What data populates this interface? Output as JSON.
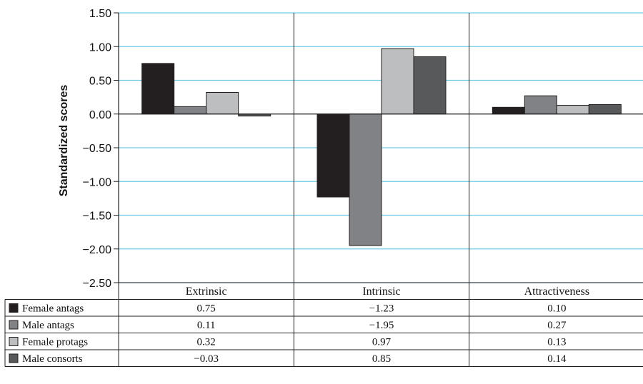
{
  "chart_data": {
    "type": "bar",
    "title": "",
    "ylabel": "Standardized scores",
    "xlabel": "",
    "ylim": [
      -2.5,
      1.5
    ],
    "yticks": [
      1.5,
      1.0,
      0.5,
      0.0,
      -0.5,
      -1.0,
      -1.5,
      -2.0,
      -2.5
    ],
    "ytick_labels": [
      "1.50",
      "1.00",
      "0.50",
      "0.00",
      "−0.50",
      "−1.00",
      "−1.50",
      "−2.00",
      "−2.50"
    ],
    "categories": [
      "Extrinsic",
      "Intrinsic",
      "Attractiveness"
    ],
    "grid": true,
    "legend": "data table below chart",
    "series": [
      {
        "name": "Female antags",
        "color": "#231f20",
        "values": [
          0.75,
          -1.23,
          0.1
        ],
        "labels": [
          "0.75",
          "−1.23",
          "0.10"
        ]
      },
      {
        "name": "Male antags",
        "color": "#808285",
        "values": [
          0.11,
          -1.95,
          0.27
        ],
        "labels": [
          "0.11",
          "−1.95",
          "0.27"
        ]
      },
      {
        "name": "Female protags",
        "color": "#bcbec0",
        "values": [
          0.32,
          0.97,
          0.13
        ],
        "labels": [
          "0.32",
          "0.97",
          "0.13"
        ]
      },
      {
        "name": "Male consorts",
        "color": "#58595b",
        "values": [
          -0.03,
          0.85,
          0.14
        ],
        "labels": [
          "−0.03",
          "0.85",
          "0.14"
        ]
      }
    ]
  }
}
